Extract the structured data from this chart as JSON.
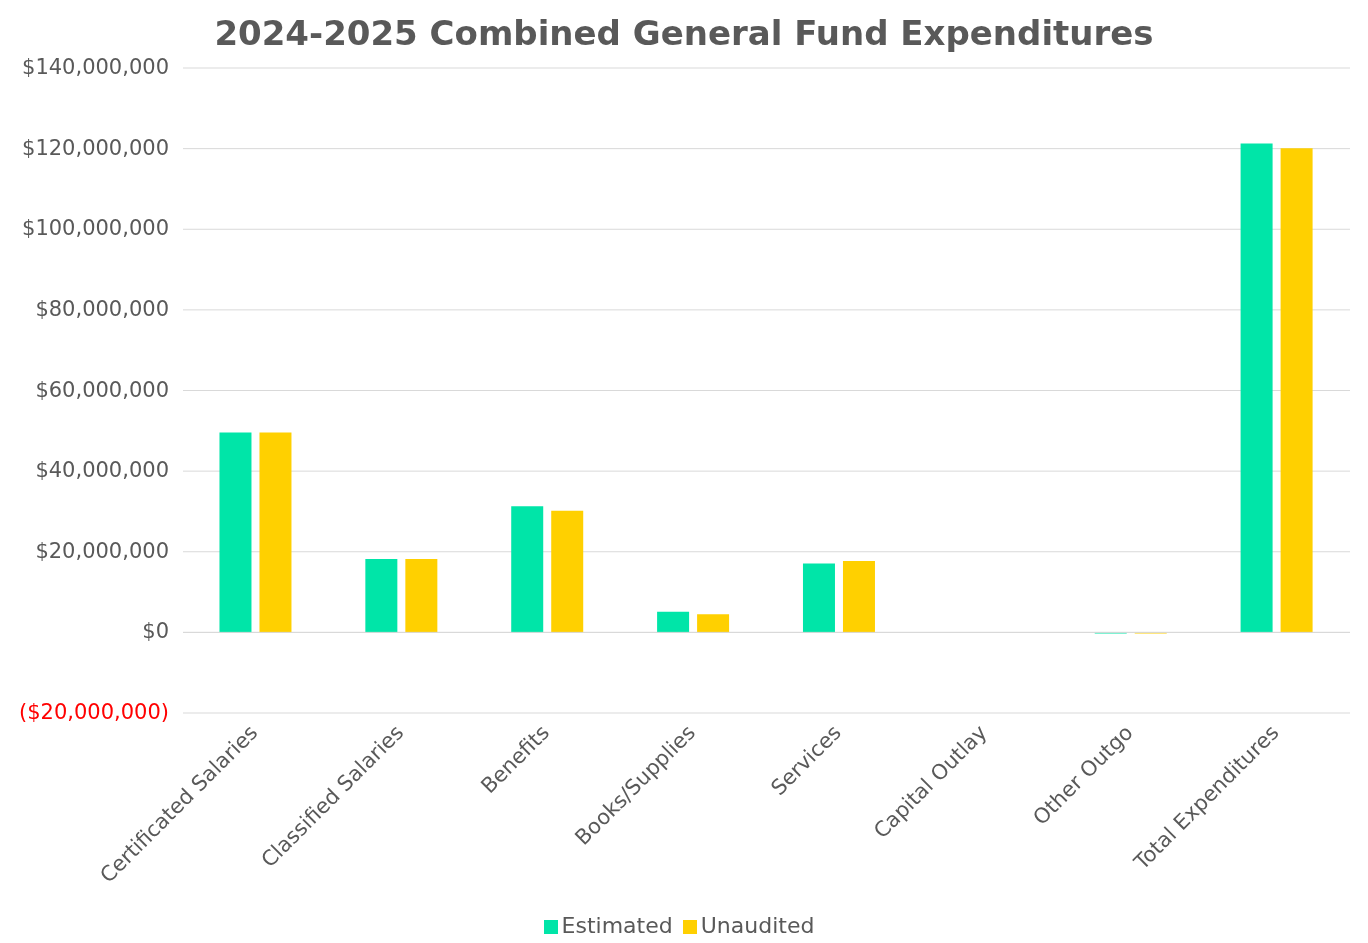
{
  "chart_data": {
    "type": "bar",
    "title": "2024-2025 Combined General Fund Expenditures",
    "categories": [
      "Certificated Salaries",
      "Classified Salaries",
      "Benefits",
      "Books/Supplies",
      "Services",
      "Capital Outlay",
      "Other Outgo",
      "Total Expenditures"
    ],
    "series": [
      {
        "name": "Estimated",
        "color": "#00e5a8",
        "values": [
          49600000,
          18200000,
          31300000,
          5100000,
          17100000,
          0,
          -300000,
          121300000
        ]
      },
      {
        "name": "Unaudited",
        "color": "#ffd000",
        "values": [
          49600000,
          18200000,
          30200000,
          4500000,
          17700000,
          0,
          -300000,
          120100000
        ]
      }
    ],
    "ylim": [
      -20000000,
      140000000
    ],
    "yticks": [
      {
        "value": -20000000,
        "label": "($20,000,000)"
      },
      {
        "value": 0,
        "label": "$0"
      },
      {
        "value": 20000000,
        "label": "$20,000,000"
      },
      {
        "value": 40000000,
        "label": "$40,000,000"
      },
      {
        "value": 60000000,
        "label": "$60,000,000"
      },
      {
        "value": 80000000,
        "label": "$80,000,000"
      },
      {
        "value": 100000000,
        "label": "$100,000,000"
      },
      {
        "value": 120000000,
        "label": "$120,000,000"
      },
      {
        "value": 140000000,
        "label": "$140,000,000"
      }
    ],
    "grid": "y",
    "legend": "bottom"
  }
}
